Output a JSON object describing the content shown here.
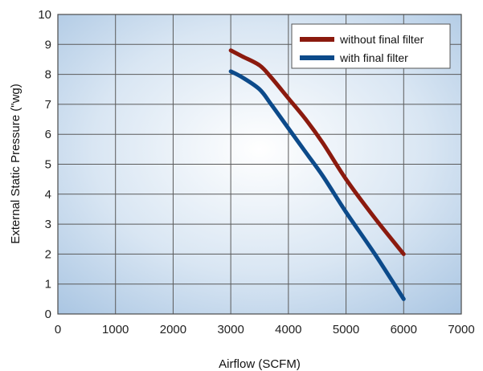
{
  "chart_data": {
    "type": "line",
    "title": "",
    "xlabel": "Airflow (SCFM)",
    "ylabel": "External Static Pressure (\"wg)",
    "xlim": [
      0,
      7000
    ],
    "ylim": [
      0,
      10
    ],
    "xticks": [
      "0",
      "1000",
      "2000",
      "3000",
      "4000",
      "5000",
      "6000",
      "7000"
    ],
    "yticks": [
      "0",
      "1",
      "2",
      "3",
      "4",
      "5",
      "6",
      "7",
      "8",
      "9",
      "10"
    ],
    "grid": true,
    "legend_position": "top-right",
    "series": [
      {
        "name": "without final filter",
        "color": "#8b1a0e",
        "x": [
          3000,
          3200,
          3500,
          3700,
          4000,
          4300,
          4600,
          5000,
          5500,
          6000
        ],
        "y": [
          8.8,
          8.6,
          8.3,
          7.9,
          7.2,
          6.5,
          5.7,
          4.5,
          3.2,
          2.0
        ]
      },
      {
        "name": "with final filter",
        "color": "#0c4a8a",
        "x": [
          3000,
          3200,
          3500,
          3700,
          4000,
          4300,
          4600,
          5000,
          5500,
          6000
        ],
        "y": [
          8.1,
          7.9,
          7.5,
          7.0,
          6.2,
          5.4,
          4.6,
          3.4,
          2.0,
          0.5
        ]
      }
    ]
  }
}
